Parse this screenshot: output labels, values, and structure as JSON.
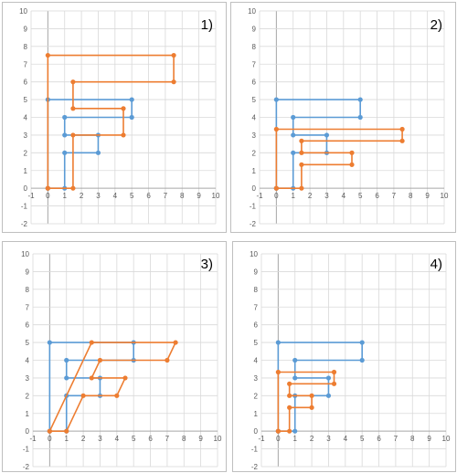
{
  "colors": {
    "original": "#5b9bd5",
    "transformed": "#ed7d31",
    "grid": "#d9d9d9",
    "axis": "#a6a6a6",
    "frame": "#bfbfbf",
    "tick": "#595959"
  },
  "chart_data": [
    {
      "type": "line",
      "title": "1)",
      "xlim": [
        -1,
        10
      ],
      "ylim": [
        -2,
        10
      ],
      "x_ticks": [
        -1,
        0,
        1,
        2,
        3,
        4,
        5,
        6,
        7,
        8,
        9,
        10
      ],
      "y_ticks": [
        -2,
        -1,
        0,
        1,
        2,
        3,
        4,
        5,
        6,
        7,
        8,
        9,
        10
      ],
      "grid": true,
      "series": [
        {
          "color": "#5b9bd5",
          "points": [
            [
              0,
              0
            ],
            [
              0,
              5
            ],
            [
              5,
              5
            ],
            [
              5,
              4
            ],
            [
              1,
              4
            ],
            [
              1,
              3
            ],
            [
              3,
              3
            ],
            [
              3,
              2
            ],
            [
              1,
              2
            ],
            [
              1,
              0
            ],
            [
              0,
              0
            ]
          ]
        },
        {
          "color": "#ed7d31",
          "points": [
            [
              0,
              0
            ],
            [
              0,
              7.5
            ],
            [
              7.5,
              7.5
            ],
            [
              7.5,
              6
            ],
            [
              1.5,
              6
            ],
            [
              1.5,
              4.5
            ],
            [
              4.5,
              4.5
            ],
            [
              4.5,
              3
            ],
            [
              1.5,
              3
            ],
            [
              1.5,
              0
            ],
            [
              0,
              0
            ]
          ]
        }
      ]
    },
    {
      "type": "line",
      "title": "2)",
      "xlim": [
        -1,
        10
      ],
      "ylim": [
        -2,
        10
      ],
      "x_ticks": [
        -1,
        0,
        1,
        2,
        3,
        4,
        5,
        6,
        7,
        8,
        9,
        10
      ],
      "y_ticks": [
        -2,
        -1,
        0,
        1,
        2,
        3,
        4,
        5,
        6,
        7,
        8,
        9,
        10
      ],
      "grid": true,
      "series": [
        {
          "color": "#5b9bd5",
          "points": [
            [
              0,
              0
            ],
            [
              0,
              5
            ],
            [
              5,
              5
            ],
            [
              5,
              4
            ],
            [
              1,
              4
            ],
            [
              1,
              3
            ],
            [
              3,
              3
            ],
            [
              3,
              2
            ],
            [
              1,
              2
            ],
            [
              1,
              0
            ],
            [
              0,
              0
            ]
          ]
        },
        {
          "color": "#ed7d31",
          "points": [
            [
              0,
              0
            ],
            [
              0,
              3.33
            ],
            [
              7.5,
              3.33
            ],
            [
              7.5,
              2.67
            ],
            [
              1.5,
              2.67
            ],
            [
              1.5,
              2
            ],
            [
              4.5,
              2
            ],
            [
              4.5,
              1.33
            ],
            [
              1.5,
              1.33
            ],
            [
              1.5,
              0
            ],
            [
              0,
              0
            ]
          ]
        }
      ]
    },
    {
      "type": "line",
      "title": "3)",
      "xlim": [
        -1,
        10
      ],
      "ylim": [
        -2,
        10
      ],
      "x_ticks": [
        -1,
        0,
        1,
        2,
        3,
        4,
        5,
        6,
        7,
        8,
        9,
        10
      ],
      "y_ticks": [
        -2,
        -1,
        0,
        1,
        2,
        3,
        4,
        5,
        6,
        7,
        8,
        9,
        10
      ],
      "grid": true,
      "series": [
        {
          "color": "#5b9bd5",
          "points": [
            [
              0,
              0
            ],
            [
              0,
              5
            ],
            [
              5,
              5
            ],
            [
              5,
              4
            ],
            [
              1,
              4
            ],
            [
              1,
              3
            ],
            [
              3,
              3
            ],
            [
              3,
              2
            ],
            [
              1,
              2
            ],
            [
              1,
              0
            ],
            [
              0,
              0
            ]
          ]
        },
        {
          "color": "#ed7d31",
          "points": [
            [
              0,
              0
            ],
            [
              2.5,
              5
            ],
            [
              7.5,
              5
            ],
            [
              7,
              4
            ],
            [
              3,
              4
            ],
            [
              2.5,
              3
            ],
            [
              4.5,
              3
            ],
            [
              4,
              2
            ],
            [
              2,
              2
            ],
            [
              1,
              0
            ],
            [
              0,
              0
            ]
          ]
        }
      ]
    },
    {
      "type": "line",
      "title": "4)",
      "xlim": [
        -1,
        10
      ],
      "ylim": [
        -2,
        10
      ],
      "x_ticks": [
        -1,
        0,
        1,
        2,
        3,
        4,
        5,
        6,
        7,
        8,
        9,
        10
      ],
      "y_ticks": [
        -2,
        -1,
        0,
        1,
        2,
        3,
        4,
        5,
        6,
        7,
        8,
        9,
        10
      ],
      "grid": true,
      "series": [
        {
          "color": "#5b9bd5",
          "points": [
            [
              0,
              0
            ],
            [
              0,
              5
            ],
            [
              5,
              5
            ],
            [
              5,
              4
            ],
            [
              1,
              4
            ],
            [
              1,
              3
            ],
            [
              3,
              3
            ],
            [
              3,
              2
            ],
            [
              1,
              2
            ],
            [
              1,
              0
            ],
            [
              0,
              0
            ]
          ]
        },
        {
          "color": "#ed7d31",
          "points": [
            [
              0,
              0
            ],
            [
              0,
              3.33
            ],
            [
              3.33,
              3.33
            ],
            [
              3.33,
              2.67
            ],
            [
              0.67,
              2.67
            ],
            [
              0.67,
              2
            ],
            [
              2,
              2
            ],
            [
              2,
              1.33
            ],
            [
              0.67,
              1.33
            ],
            [
              0.67,
              0
            ],
            [
              0,
              0
            ]
          ]
        }
      ]
    }
  ]
}
